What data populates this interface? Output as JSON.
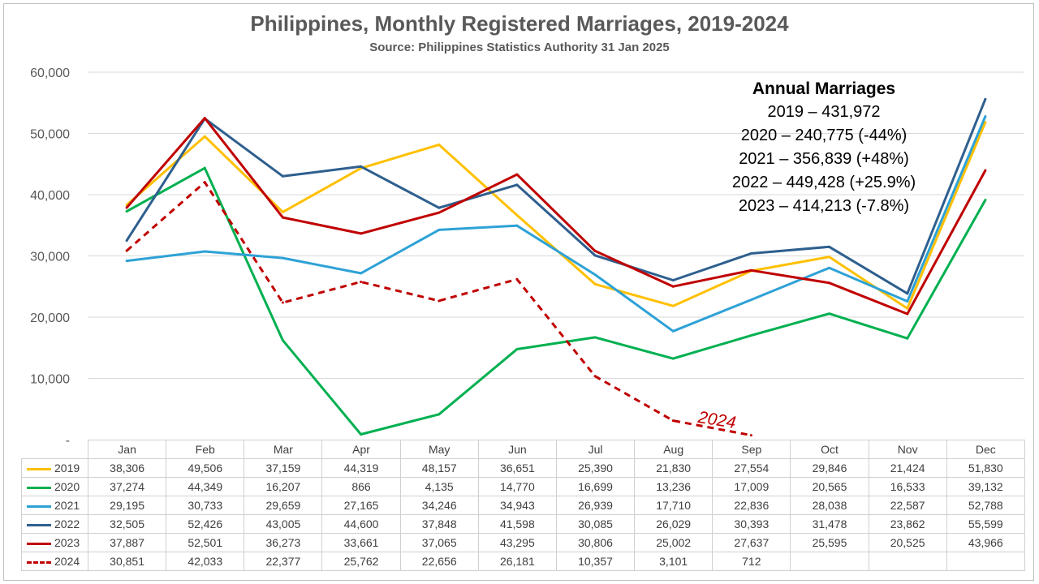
{
  "chart_data": {
    "type": "line",
    "title": "Philippines, Monthly Registered Marriages, 2019-2024",
    "subtitle": "Source: Philippines Statistics Authority 31 Jan 2025",
    "categories": [
      "Jan",
      "Feb",
      "Mar",
      "Apr",
      "May",
      "Jun",
      "Jul",
      "Aug",
      "Sep",
      "Oct",
      "Nov",
      "Dec"
    ],
    "ylim": [
      0,
      60000
    ],
    "yticks": [
      "-",
      "10,000",
      "20,000",
      "30,000",
      "40,000",
      "50,000",
      "60,000"
    ],
    "grid": true,
    "series": [
      {
        "name": "2019",
        "color": "#FFC000",
        "dashed": false,
        "values": [
          38306,
          49506,
          37159,
          44319,
          48157,
          36651,
          25390,
          21830,
          27554,
          29846,
          21424,
          51830
        ],
        "labels": [
          "38,306",
          "49,506",
          "37,159",
          "44,319",
          "48,157",
          "36,651",
          "25,390",
          "21,830",
          "27,554",
          "29,846",
          "21,424",
          "51,830"
        ]
      },
      {
        "name": "2020",
        "color": "#00B050",
        "dashed": false,
        "values": [
          37274,
          44349,
          16207,
          866,
          4135,
          14770,
          16699,
          13236,
          17009,
          20565,
          16533,
          39132
        ],
        "labels": [
          "37,274",
          "44,349",
          "16,207",
          "866",
          "4,135",
          "14,770",
          "16,699",
          "13,236",
          "17,009",
          "20,565",
          "16,533",
          "39,132"
        ]
      },
      {
        "name": "2021",
        "color": "#2EA2D6",
        "dashed": false,
        "values": [
          29195,
          30733,
          29659,
          27165,
          34246,
          34943,
          26939,
          17710,
          22836,
          28038,
          22587,
          52788
        ],
        "labels": [
          "29,195",
          "30,733",
          "29,659",
          "27,165",
          "34,246",
          "34,943",
          "26,939",
          "17,710",
          "22,836",
          "28,038",
          "22,587",
          "52,788"
        ]
      },
      {
        "name": "2022",
        "color": "#2E5F8E",
        "dashed": false,
        "values": [
          32505,
          52426,
          43005,
          44600,
          37848,
          41598,
          30085,
          26029,
          30393,
          31478,
          23862,
          55599
        ],
        "labels": [
          "32,505",
          "52,426",
          "43,005",
          "44,600",
          "37,848",
          "41,598",
          "30,085",
          "26,029",
          "30,393",
          "31,478",
          "23,862",
          "55,599"
        ]
      },
      {
        "name": "2023",
        "color": "#C00000",
        "dashed": false,
        "values": [
          37887,
          52501,
          36273,
          33661,
          37065,
          43295,
          30806,
          25002,
          27637,
          25595,
          20525,
          43966
        ],
        "labels": [
          "37,887",
          "52,501",
          "36,273",
          "33,661",
          "37,065",
          "43,295",
          "30,806",
          "25,002",
          "27,637",
          "25,595",
          "20,525",
          "43,966"
        ]
      },
      {
        "name": "2024",
        "color": "#C00000",
        "dashed": true,
        "values": [
          30851,
          42033,
          22377,
          25762,
          22656,
          26181,
          10357,
          3101,
          712,
          null,
          null,
          null
        ],
        "labels": [
          "30,851",
          "42,033",
          "22,377",
          "25,762",
          "22,656",
          "26,181",
          "10,357",
          "3,101",
          "712",
          "",
          "",
          ""
        ]
      }
    ],
    "annotations": {
      "annual_heading": "Annual Marriages",
      "annual_lines": [
        "2019 – 431,972",
        "2020 – 240,775 (-44%)",
        "2021 – 356,839 (+48%)",
        "2022 – 449,428 (+25.9%)",
        "2023 – 414,213 (-7.8%)"
      ],
      "series_label": "2024"
    }
  }
}
